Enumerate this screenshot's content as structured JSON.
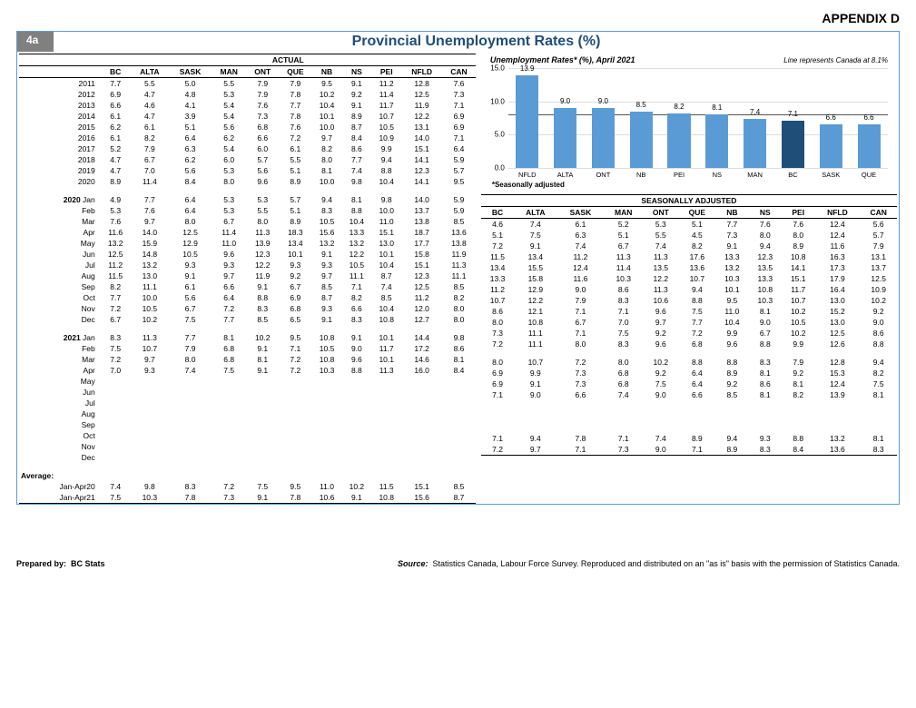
{
  "appendix": "APPENDIX D",
  "tab": "4a",
  "title": "Provincial Unemployment Rates (%)",
  "actual_header": "ACTUAL",
  "sa_header": "SEASONALLY ADJUSTED",
  "columns": [
    "BC",
    "ALTA",
    "SASK",
    "MAN",
    "ONT",
    "QUE",
    "NB",
    "NS",
    "PEI",
    "NFLD",
    "CAN"
  ],
  "annual_rows": [
    {
      "label": "2011",
      "v": [
        "7.7",
        "5.5",
        "5.0",
        "5.5",
        "7.9",
        "7.9",
        "9.5",
        "9.1",
        "11.2",
        "12.8",
        "7.6"
      ]
    },
    {
      "label": "2012",
      "v": [
        "6.9",
        "4.7",
        "4.8",
        "5.3",
        "7.9",
        "7.8",
        "10.2",
        "9.2",
        "11.4",
        "12.5",
        "7.3"
      ]
    },
    {
      "label": "2013",
      "v": [
        "6.6",
        "4.6",
        "4.1",
        "5.4",
        "7.6",
        "7.7",
        "10.4",
        "9.1",
        "11.7",
        "11.9",
        "7.1"
      ]
    },
    {
      "label": "2014",
      "v": [
        "6.1",
        "4.7",
        "3.9",
        "5.4",
        "7.3",
        "7.8",
        "10.1",
        "8.9",
        "10.7",
        "12.2",
        "6.9"
      ]
    },
    {
      "label": "2015",
      "v": [
        "6.2",
        "6.1",
        "5.1",
        "5.6",
        "6.8",
        "7.6",
        "10.0",
        "8.7",
        "10.5",
        "13.1",
        "6.9"
      ]
    },
    {
      "label": "2016",
      "v": [
        "6.1",
        "8.2",
        "6.4",
        "6.2",
        "6.6",
        "7.2",
        "9.7",
        "8.4",
        "10.9",
        "14.0",
        "7.1"
      ]
    },
    {
      "label": "2017",
      "v": [
        "5.2",
        "7.9",
        "6.3",
        "5.4",
        "6.0",
        "6.1",
        "8.2",
        "8.6",
        "9.9",
        "15.1",
        "6.4"
      ]
    },
    {
      "label": "2018",
      "v": [
        "4.7",
        "6.7",
        "6.2",
        "6.0",
        "5.7",
        "5.5",
        "8.0",
        "7.7",
        "9.4",
        "14.1",
        "5.9"
      ]
    },
    {
      "label": "2019",
      "v": [
        "4.7",
        "7.0",
        "5.6",
        "5.3",
        "5.6",
        "5.1",
        "8.1",
        "7.4",
        "8.8",
        "12.3",
        "5.7"
      ]
    },
    {
      "label": "2020",
      "v": [
        "8.9",
        "11.4",
        "8.4",
        "8.0",
        "9.6",
        "8.9",
        "10.0",
        "9.8",
        "10.4",
        "14.1",
        "9.5"
      ]
    }
  ],
  "monthly_sections": [
    {
      "year": "2020",
      "rows": [
        {
          "label": "Jan",
          "a": [
            "4.9",
            "7.7",
            "6.4",
            "5.3",
            "5.3",
            "5.7",
            "9.4",
            "8.1",
            "9.8",
            "14.0",
            "5.9"
          ],
          "s": [
            "4.6",
            "7.4",
            "6.1",
            "5.2",
            "5.3",
            "5.1",
            "7.7",
            "7.6",
            "7.6",
            "12.4",
            "5.6"
          ]
        },
        {
          "label": "Feb",
          "a": [
            "5.3",
            "7.6",
            "6.4",
            "5.3",
            "5.5",
            "5.1",
            "8.3",
            "8.8",
            "10.0",
            "13.7",
            "5.9"
          ],
          "s": [
            "5.1",
            "7.5",
            "6.3",
            "5.1",
            "5.5",
            "4.5",
            "7.3",
            "8.0",
            "8.0",
            "12.4",
            "5.7"
          ]
        },
        {
          "label": "Mar",
          "a": [
            "7.6",
            "9.7",
            "8.0",
            "6.7",
            "8.0",
            "8.9",
            "10.5",
            "10.4",
            "11.0",
            "13.8",
            "8.5"
          ],
          "s": [
            "7.2",
            "9.1",
            "7.4",
            "6.7",
            "7.4",
            "8.2",
            "9.1",
            "9.4",
            "8.9",
            "11.6",
            "7.9"
          ]
        },
        {
          "label": "Apr",
          "a": [
            "11.6",
            "14.0",
            "12.5",
            "11.4",
            "11.3",
            "18.3",
            "15.6",
            "13.3",
            "15.1",
            "18.7",
            "13.6"
          ],
          "s": [
            "11.5",
            "13.4",
            "11.2",
            "11.3",
            "11.3",
            "17.6",
            "13.3",
            "12.3",
            "10.8",
            "16.3",
            "13.1"
          ]
        },
        {
          "label": "May",
          "a": [
            "13.2",
            "15.9",
            "12.9",
            "11.0",
            "13.9",
            "13.4",
            "13.2",
            "13.2",
            "13.0",
            "17.7",
            "13.8"
          ],
          "s": [
            "13.4",
            "15.5",
            "12.4",
            "11.4",
            "13.5",
            "13.6",
            "13.2",
            "13.5",
            "14.1",
            "17.3",
            "13.7"
          ]
        },
        {
          "label": "Jun",
          "a": [
            "12.5",
            "14.8",
            "10.5",
            "9.6",
            "12.3",
            "10.1",
            "9.1",
            "12.2",
            "10.1",
            "15.8",
            "11.9"
          ],
          "s": [
            "13.3",
            "15.8",
            "11.6",
            "10.3",
            "12.2",
            "10.7",
            "10.3",
            "13.3",
            "15.1",
            "17.9",
            "12.5"
          ]
        },
        {
          "label": "Jul",
          "a": [
            "11.2",
            "13.2",
            "9.3",
            "9.3",
            "12.2",
            "9.3",
            "9.3",
            "10.5",
            "10.4",
            "15.1",
            "11.3"
          ],
          "s": [
            "11.2",
            "12.9",
            "9.0",
            "8.6",
            "11.3",
            "9.4",
            "10.1",
            "10.8",
            "11.7",
            "16.4",
            "10.9"
          ]
        },
        {
          "label": "Aug",
          "a": [
            "11.5",
            "13.0",
            "9.1",
            "9.7",
            "11.9",
            "9.2",
            "9.7",
            "11.1",
            "8.7",
            "12.3",
            "11.1"
          ],
          "s": [
            "10.7",
            "12.2",
            "7.9",
            "8.3",
            "10.6",
            "8.8",
            "9.5",
            "10.3",
            "10.7",
            "13.0",
            "10.2"
          ]
        },
        {
          "label": "Sep",
          "a": [
            "8.2",
            "11.1",
            "6.1",
            "6.6",
            "9.1",
            "6.7",
            "8.5",
            "7.1",
            "7.4",
            "12.5",
            "8.5"
          ],
          "s": [
            "8.6",
            "12.1",
            "7.1",
            "7.1",
            "9.6",
            "7.5",
            "11.0",
            "8.1",
            "10.2",
            "15.2",
            "9.2"
          ]
        },
        {
          "label": "Oct",
          "a": [
            "7.7",
            "10.0",
            "5.6",
            "6.4",
            "8.8",
            "6.9",
            "8.7",
            "8.2",
            "8.5",
            "11.2",
            "8.2"
          ],
          "s": [
            "8.0",
            "10.8",
            "6.7",
            "7.0",
            "9.7",
            "7.7",
            "10.4",
            "9.0",
            "10.5",
            "13.0",
            "9.0"
          ]
        },
        {
          "label": "Nov",
          "a": [
            "7.2",
            "10.5",
            "6.7",
            "7.2",
            "8.3",
            "6.8",
            "9.3",
            "6.6",
            "10.4",
            "12.0",
            "8.0"
          ],
          "s": [
            "7.3",
            "11.1",
            "7.1",
            "7.5",
            "9.2",
            "7.2",
            "9.9",
            "6.7",
            "10.2",
            "12.5",
            "8.6"
          ]
        },
        {
          "label": "Dec",
          "a": [
            "6.7",
            "10.2",
            "7.5",
            "7.7",
            "8.5",
            "6.5",
            "9.1",
            "8.3",
            "10.8",
            "12.7",
            "8.0"
          ],
          "s": [
            "7.2",
            "11.1",
            "8.0",
            "8.3",
            "9.6",
            "6.8",
            "9.6",
            "8.8",
            "9.9",
            "12.6",
            "8.8"
          ]
        }
      ]
    },
    {
      "year": "2021",
      "rows": [
        {
          "label": "Jan",
          "a": [
            "8.3",
            "11.3",
            "7.7",
            "8.1",
            "10.2",
            "9.5",
            "10.8",
            "9.1",
            "10.1",
            "14.4",
            "9.8"
          ],
          "s": [
            "8.0",
            "10.7",
            "7.2",
            "8.0",
            "10.2",
            "8.8",
            "8.8",
            "8.3",
            "7.9",
            "12.8",
            "9.4"
          ]
        },
        {
          "label": "Feb",
          "a": [
            "7.5",
            "10.7",
            "7.9",
            "6.8",
            "9.1",
            "7.1",
            "10.5",
            "9.0",
            "11.7",
            "17.2",
            "8.6"
          ],
          "s": [
            "6.9",
            "9.9",
            "7.3",
            "6.8",
            "9.2",
            "6.4",
            "8.9",
            "8.1",
            "9.2",
            "15.3",
            "8.2"
          ]
        },
        {
          "label": "Mar",
          "a": [
            "7.2",
            "9.7",
            "8.0",
            "6.8",
            "8.1",
            "7.2",
            "10.8",
            "9.6",
            "10.1",
            "14.6",
            "8.1"
          ],
          "s": [
            "6.9",
            "9.1",
            "7.3",
            "6.8",
            "7.5",
            "6.4",
            "9.2",
            "8.6",
            "8.1",
            "12.4",
            "7.5"
          ]
        },
        {
          "label": "Apr",
          "a": [
            "7.0",
            "9.3",
            "7.4",
            "7.5",
            "9.1",
            "7.2",
            "10.3",
            "8.8",
            "11.3",
            "16.0",
            "8.4"
          ],
          "s": [
            "7.1",
            "9.0",
            "6.6",
            "7.4",
            "9.0",
            "6.6",
            "8.5",
            "8.1",
            "8.2",
            "13.9",
            "8.1"
          ]
        },
        {
          "label": "May",
          "a": null,
          "s": null
        },
        {
          "label": "Jun",
          "a": null,
          "s": null
        },
        {
          "label": "Jul",
          "a": null,
          "s": null
        },
        {
          "label": "Aug",
          "a": null,
          "s": null
        },
        {
          "label": "Sep",
          "a": null,
          "s": null
        },
        {
          "label": "Oct",
          "a": null,
          "s": null
        },
        {
          "label": "Nov",
          "a": null,
          "s": null
        },
        {
          "label": "Dec",
          "a": null,
          "s": null
        }
      ]
    }
  ],
  "average_label": "Average:",
  "average_rows": [
    {
      "label": "Jan-Apr20",
      "a": [
        "7.4",
        "9.8",
        "8.3",
        "7.2",
        "7.5",
        "9.5",
        "11.0",
        "10.2",
        "11.5",
        "15.1",
        "8.5"
      ],
      "s": [
        "7.1",
        "9.4",
        "7.8",
        "7.1",
        "7.4",
        "8.9",
        "9.4",
        "9.3",
        "8.8",
        "13.2",
        "8.1"
      ]
    },
    {
      "label": "Jan-Apr21",
      "a": [
        "7.5",
        "10.3",
        "7.8",
        "7.3",
        "9.1",
        "7.8",
        "10.6",
        "9.1",
        "10.8",
        "15.6",
        "8.7"
      ],
      "s": [
        "7.2",
        "9.7",
        "7.1",
        "7.3",
        "9.0",
        "7.1",
        "8.9",
        "8.3",
        "8.4",
        "13.6",
        "8.3"
      ]
    }
  ],
  "chart": {
    "title": "Unemployment Rates* (%), April 2021",
    "note": "Line represents Canada at 8.1%",
    "ymax": 15,
    "ystep": 5,
    "canada_line": 8.1,
    "bar_color": "#5b9bd5",
    "highlight_color": "#1f4e79",
    "highlight_index": 7,
    "bars": [
      {
        "label": "NFLD",
        "value": 13.9
      },
      {
        "label": "ALTA",
        "value": 9.0
      },
      {
        "label": "ONT",
        "value": 9.0
      },
      {
        "label": "NB",
        "value": 8.5
      },
      {
        "label": "PEI",
        "value": 8.2
      },
      {
        "label": "NS",
        "value": 8.1
      },
      {
        "label": "MAN",
        "value": 7.4
      },
      {
        "label": "BC",
        "value": 7.1
      },
      {
        "label": "SASK",
        "value": 6.6
      },
      {
        "label": "QUE",
        "value": 6.6
      }
    ],
    "footnote": "*Seasonally adjusted"
  },
  "footer": {
    "prepared_label": "Prepared by:",
    "prepared_value": "BC Stats",
    "source_label": "Source:",
    "source_value": "Statistics Canada, Labour Force Survey.  Reproduced and distributed on an \"as is\" basis with the permission of Statistics Canada."
  }
}
